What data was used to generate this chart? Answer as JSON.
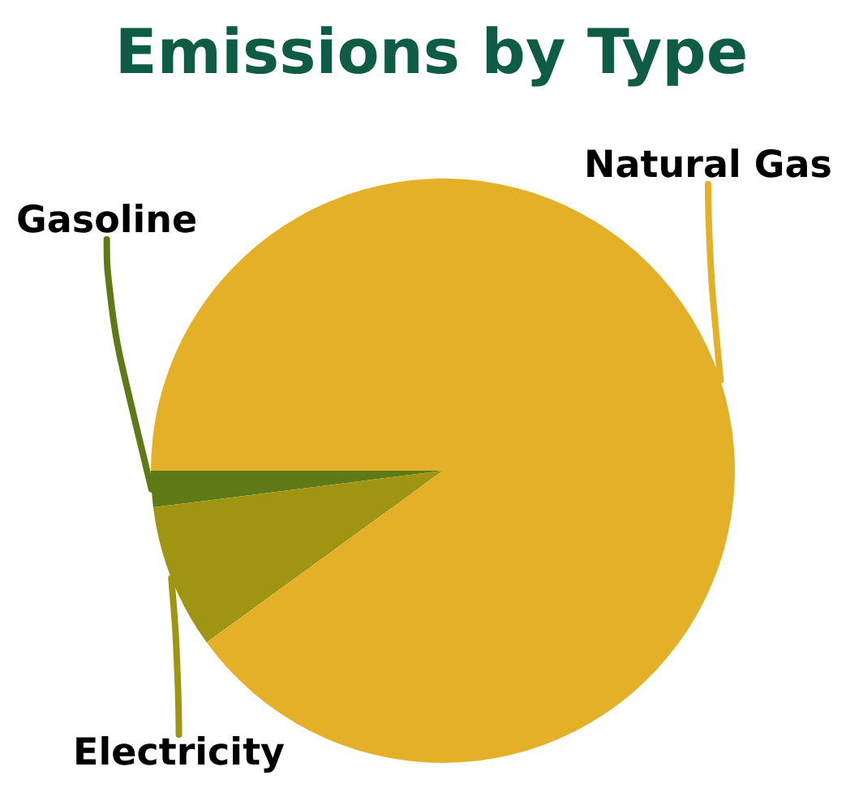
{
  "chart_data": {
    "type": "pie",
    "title": "Emissions by Type",
    "categories": [
      "Gasoline",
      "Electricity",
      "Natural Gas"
    ],
    "values": [
      2,
      8,
      90
    ],
    "colors": [
      "#5e7a17",
      "#a09513",
      "#e3b027"
    ],
    "legend": false
  }
}
